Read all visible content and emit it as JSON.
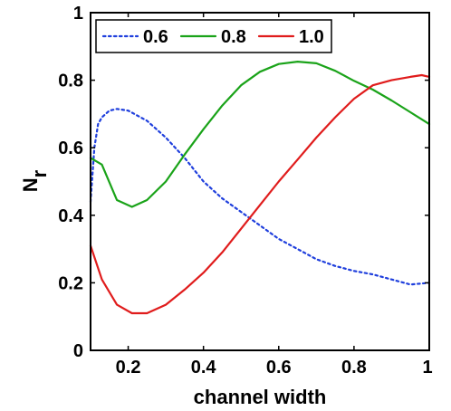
{
  "chart_data": {
    "type": "line",
    "xlabel": "channel width",
    "ylabel": "N",
    "ylabel_sub": "r",
    "xlim": [
      0.1,
      1.0
    ],
    "ylim": [
      0,
      1
    ],
    "xticks": [
      0.2,
      0.4,
      0.6,
      0.8,
      1
    ],
    "xtick_labels": [
      "0.2",
      "0.4",
      "0.6",
      "0.8",
      "1"
    ],
    "yticks": [
      0,
      0.2,
      0.4,
      0.6,
      0.8,
      1
    ],
    "ytick_labels": [
      "0",
      "0.2",
      "0.4",
      "0.6",
      "0.8",
      "1"
    ],
    "grid": false,
    "legend_position": "top-left",
    "series": [
      {
        "name": "0.6",
        "color": "#1f3fdd",
        "dash": "dotted",
        "x": [
          0.1,
          0.11,
          0.12,
          0.13,
          0.15,
          0.17,
          0.2,
          0.25,
          0.3,
          0.35,
          0.4,
          0.45,
          0.5,
          0.55,
          0.6,
          0.65,
          0.7,
          0.75,
          0.8,
          0.85,
          0.9,
          0.95,
          1.0
        ],
        "values": [
          0.44,
          0.6,
          0.67,
          0.69,
          0.71,
          0.715,
          0.71,
          0.68,
          0.63,
          0.57,
          0.5,
          0.45,
          0.41,
          0.37,
          0.33,
          0.3,
          0.27,
          0.25,
          0.235,
          0.225,
          0.21,
          0.195,
          0.2
        ]
      },
      {
        "name": "0.8",
        "color": "#1aa319",
        "dash": "solid",
        "x": [
          0.1,
          0.13,
          0.17,
          0.21,
          0.25,
          0.3,
          0.35,
          0.4,
          0.45,
          0.5,
          0.55,
          0.6,
          0.65,
          0.7,
          0.75,
          0.8,
          0.85,
          0.9,
          0.95,
          1.0
        ],
        "values": [
          0.57,
          0.55,
          0.445,
          0.425,
          0.445,
          0.5,
          0.58,
          0.655,
          0.725,
          0.785,
          0.825,
          0.848,
          0.855,
          0.85,
          0.828,
          0.798,
          0.772,
          0.74,
          0.705,
          0.67
        ]
      },
      {
        "name": "1.0",
        "color": "#e01c1c",
        "dash": "solid",
        "x": [
          0.1,
          0.13,
          0.17,
          0.21,
          0.25,
          0.3,
          0.35,
          0.4,
          0.45,
          0.5,
          0.55,
          0.6,
          0.65,
          0.7,
          0.75,
          0.8,
          0.85,
          0.9,
          0.95,
          0.98,
          1.0
        ],
        "values": [
          0.31,
          0.21,
          0.135,
          0.11,
          0.11,
          0.135,
          0.18,
          0.23,
          0.29,
          0.36,
          0.43,
          0.5,
          0.565,
          0.63,
          0.69,
          0.745,
          0.785,
          0.8,
          0.81,
          0.815,
          0.81
        ]
      }
    ]
  }
}
